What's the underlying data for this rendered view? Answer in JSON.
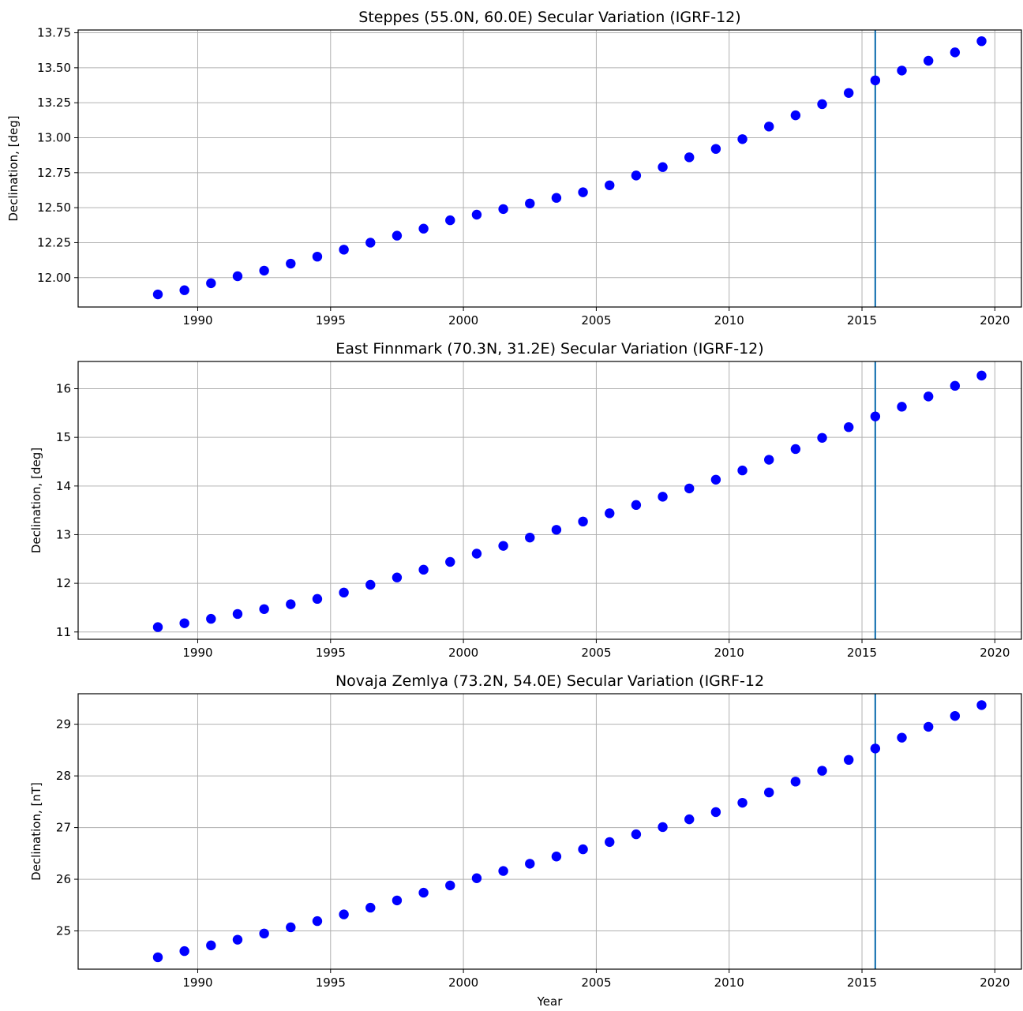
{
  "colors": {
    "points": "#0000ff",
    "reference_line": "#1f77b4",
    "grid": "#b0b0b0"
  },
  "figure": {
    "xlabel": "Year"
  },
  "chart_data": [
    {
      "type": "scatter",
      "title": "Steppes (55.0N, 60.0E) Secular Variation (IGRF-12)",
      "xlabel": "",
      "ylabel": "Declination, [deg]",
      "xlim": [
        1985.5,
        2021
      ],
      "ylim": [
        11.79,
        13.77
      ],
      "xticks": [
        1990,
        1995,
        2000,
        2005,
        2010,
        2015,
        2020
      ],
      "yticks": [
        "12.00",
        "12.25",
        "12.50",
        "12.75",
        "13.00",
        "13.25",
        "13.50",
        "13.75"
      ],
      "vline_x": 2015.5,
      "grid": true,
      "x": [
        1988.5,
        1989.5,
        1990.5,
        1991.5,
        1992.5,
        1993.5,
        1994.5,
        1995.5,
        1996.5,
        1997.5,
        1998.5,
        1999.5,
        2000.5,
        2001.5,
        2002.5,
        2003.5,
        2004.5,
        2005.5,
        2006.5,
        2007.5,
        2008.5,
        2009.5,
        2010.5,
        2011.5,
        2012.5,
        2013.5,
        2014.5,
        2015.5,
        2016.5,
        2017.5,
        2018.5,
        2019.5
      ],
      "y": [
        11.88,
        11.91,
        11.96,
        12.01,
        12.05,
        12.1,
        12.15,
        12.2,
        12.25,
        12.3,
        12.35,
        12.41,
        12.45,
        12.49,
        12.53,
        12.57,
        12.61,
        12.66,
        12.73,
        12.79,
        12.86,
        12.92,
        12.99,
        13.08,
        13.16,
        13.24,
        13.32,
        13.41,
        13.48,
        13.55,
        13.61,
        13.69
      ]
    },
    {
      "type": "scatter",
      "title": "East Finnmark (70.3N, 31.2E) Secular Variation (IGRF-12)",
      "xlabel": "",
      "ylabel": "Declination, [deg]",
      "xlim": [
        1985.5,
        2021
      ],
      "ylim": [
        10.85,
        16.56
      ],
      "xticks": [
        1990,
        1995,
        2000,
        2005,
        2010,
        2015,
        2020
      ],
      "yticks": [
        "11",
        "12",
        "13",
        "14",
        "15",
        "16"
      ],
      "vline_x": 2015.5,
      "grid": true,
      "x": [
        1988.5,
        1989.5,
        1990.5,
        1991.5,
        1992.5,
        1993.5,
        1994.5,
        1995.5,
        1996.5,
        1997.5,
        1998.5,
        1999.5,
        2000.5,
        2001.5,
        2002.5,
        2003.5,
        2004.5,
        2005.5,
        2006.5,
        2007.5,
        2008.5,
        2009.5,
        2010.5,
        2011.5,
        2012.5,
        2013.5,
        2014.5,
        2015.5,
        2016.5,
        2017.5,
        2018.5,
        2019.5
      ],
      "y": [
        11.1,
        11.18,
        11.27,
        11.37,
        11.47,
        11.57,
        11.68,
        11.81,
        11.97,
        12.12,
        12.28,
        12.44,
        12.61,
        12.77,
        12.94,
        13.1,
        13.27,
        13.44,
        13.61,
        13.78,
        13.95,
        14.13,
        14.32,
        14.54,
        14.76,
        14.99,
        15.21,
        15.43,
        15.63,
        15.84,
        16.06,
        16.27
      ]
    },
    {
      "type": "scatter",
      "title": "Novaja Zemlya (73.2N, 54.0E) Secular Variation (IGRF-12",
      "xlabel": "Year",
      "ylabel": "Declination, [nT]",
      "xlim": [
        1985.5,
        2021
      ],
      "ylim": [
        24.26,
        29.59
      ],
      "xticks": [
        1990,
        1995,
        2000,
        2005,
        2010,
        2015,
        2020
      ],
      "yticks": [
        "25",
        "26",
        "27",
        "28",
        "29"
      ],
      "vline_x": 2015.5,
      "grid": true,
      "x": [
        1988.5,
        1989.5,
        1990.5,
        1991.5,
        1992.5,
        1993.5,
        1994.5,
        1995.5,
        1996.5,
        1997.5,
        1998.5,
        1999.5,
        2000.5,
        2001.5,
        2002.5,
        2003.5,
        2004.5,
        2005.5,
        2006.5,
        2007.5,
        2008.5,
        2009.5,
        2010.5,
        2011.5,
        2012.5,
        2013.5,
        2014.5,
        2015.5,
        2016.5,
        2017.5,
        2018.5,
        2019.5
      ],
      "y": [
        24.49,
        24.61,
        24.72,
        24.83,
        24.95,
        25.07,
        25.19,
        25.32,
        25.45,
        25.59,
        25.74,
        25.88,
        26.02,
        26.16,
        26.3,
        26.44,
        26.58,
        26.72,
        26.87,
        27.01,
        27.16,
        27.3,
        27.48,
        27.68,
        27.89,
        28.1,
        28.31,
        28.53,
        28.74,
        28.95,
        29.16,
        29.37
      ]
    }
  ]
}
